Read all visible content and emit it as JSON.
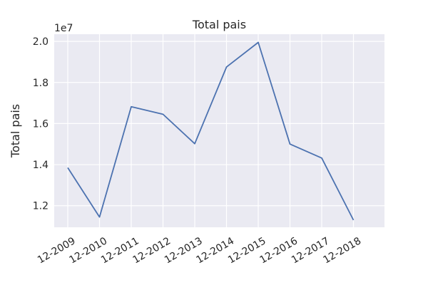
{
  "chart_data": {
    "type": "line",
    "title": "Total pais",
    "xlabel": "",
    "ylabel": "Total pais",
    "y_offset_label": "1e7",
    "categories": [
      "12-2009",
      "12-2010",
      "12-2011",
      "12-2012",
      "12-2013",
      "12-2014",
      "12-2015",
      "12-2016",
      "12-2017",
      "12-2018"
    ],
    "values": [
      13850000,
      11450000,
      16820000,
      16450000,
      15020000,
      18750000,
      19950000,
      15000000,
      14320000,
      11300000
    ],
    "yticks": [
      12000000,
      14000000,
      16000000,
      18000000,
      20000000
    ],
    "ytick_labels": [
      "1.2",
      "1.4",
      "1.6",
      "1.8",
      "2.0"
    ],
    "ylim": [
      10950000,
      20350000
    ],
    "grid": true,
    "background": "#eaeaf2",
    "line_color": "#4c72b0"
  }
}
